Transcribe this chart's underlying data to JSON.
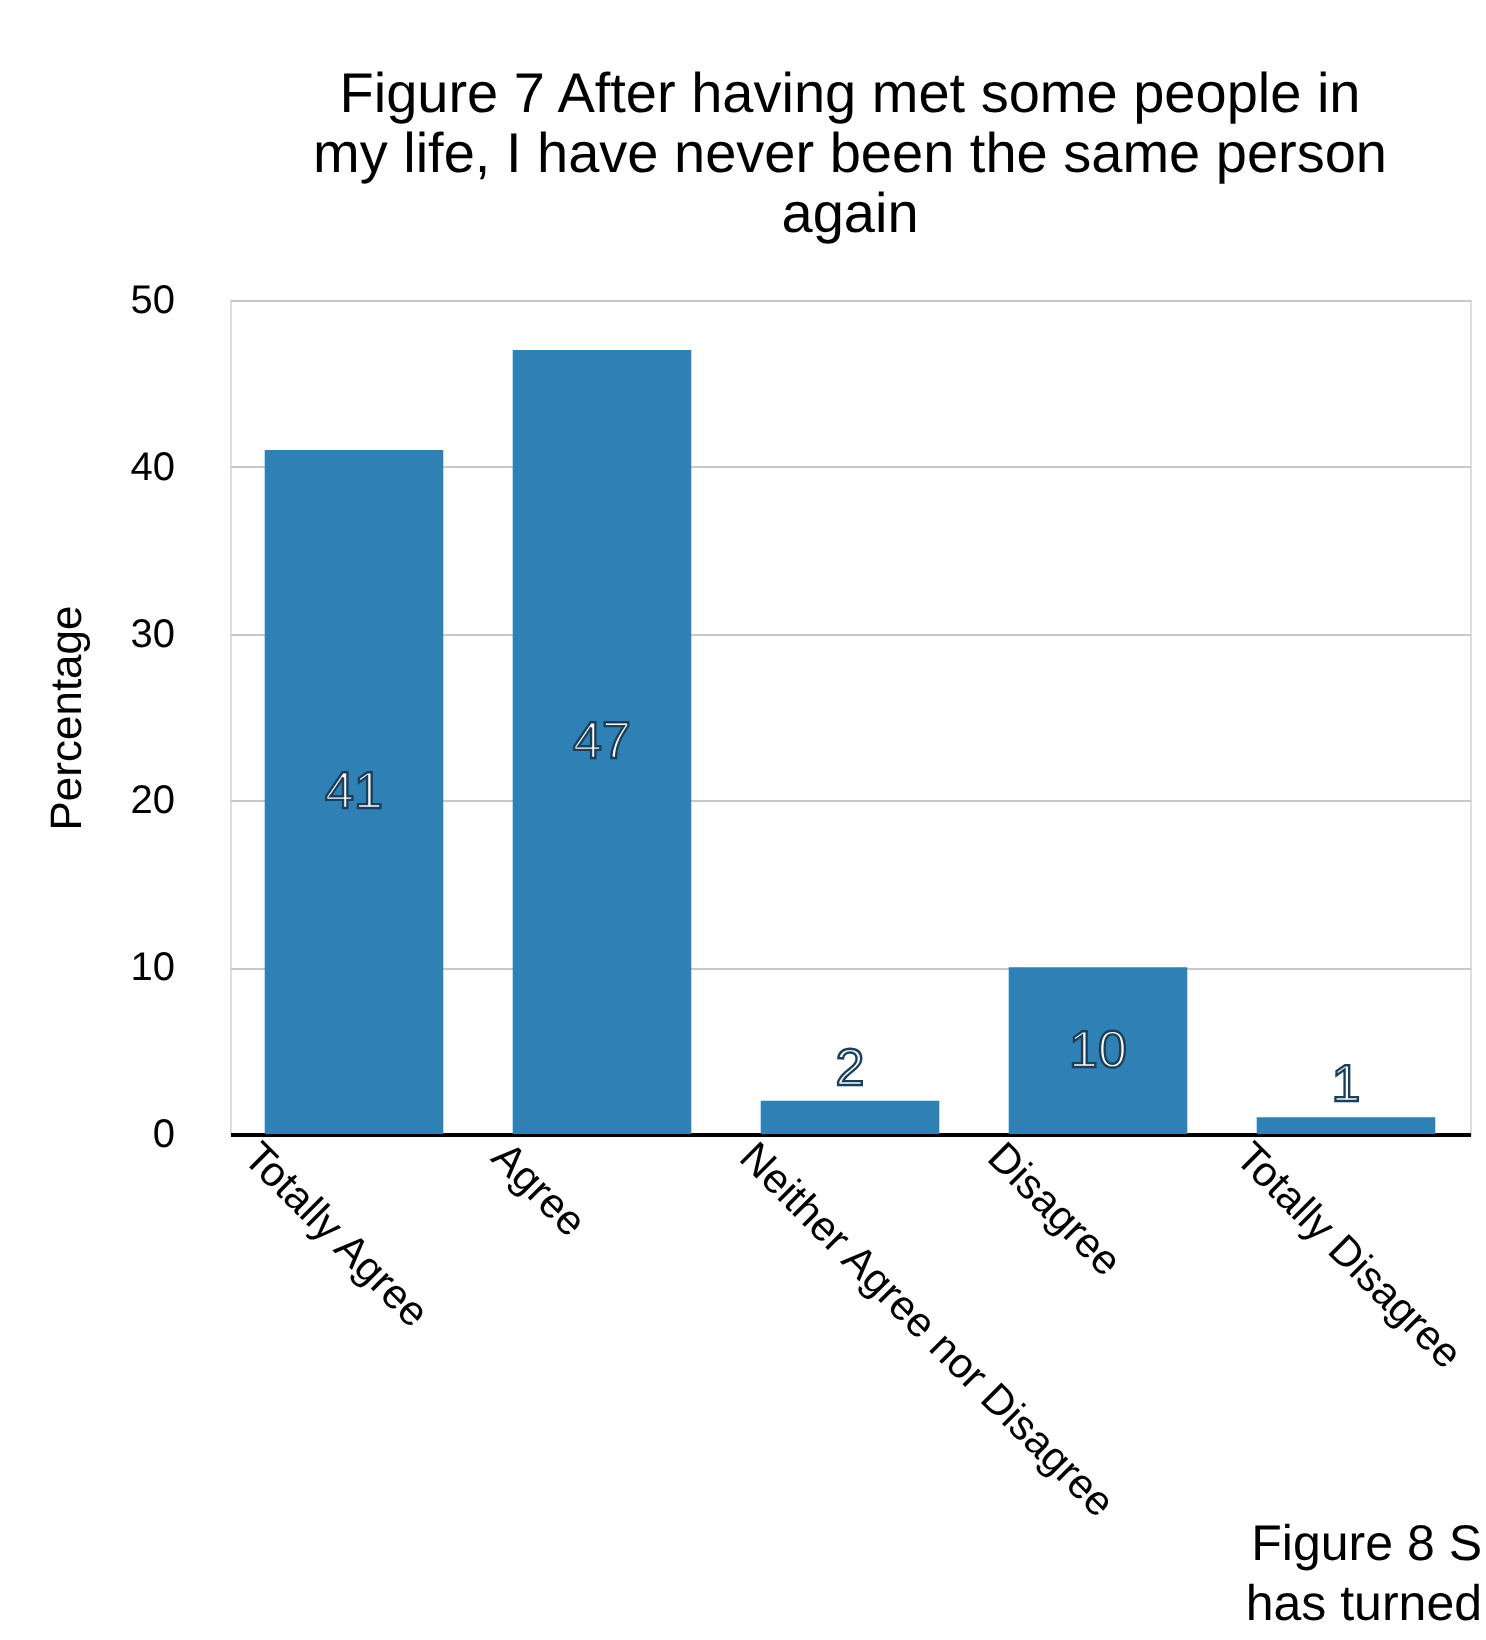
{
  "chart_data": {
    "type": "bar",
    "title": "Figure 7  After having met some people in\nmy life, I have never been the same person\nagain",
    "ylabel": "Percentage",
    "categories": [
      "Totally Agree",
      "Agree",
      "Neither Agree nor Disagree",
      "Disagree",
      "Totally Disagree"
    ],
    "values": [
      41,
      47,
      2,
      10,
      1
    ],
    "color": "#2f80b4",
    "ylim": [
      0,
      50
    ],
    "yticks": [
      0,
      10,
      20,
      30,
      40,
      50
    ],
    "grid": "y",
    "data_labels": true,
    "annotations": [
      "Figure 8 S\nhas turned"
    ]
  }
}
